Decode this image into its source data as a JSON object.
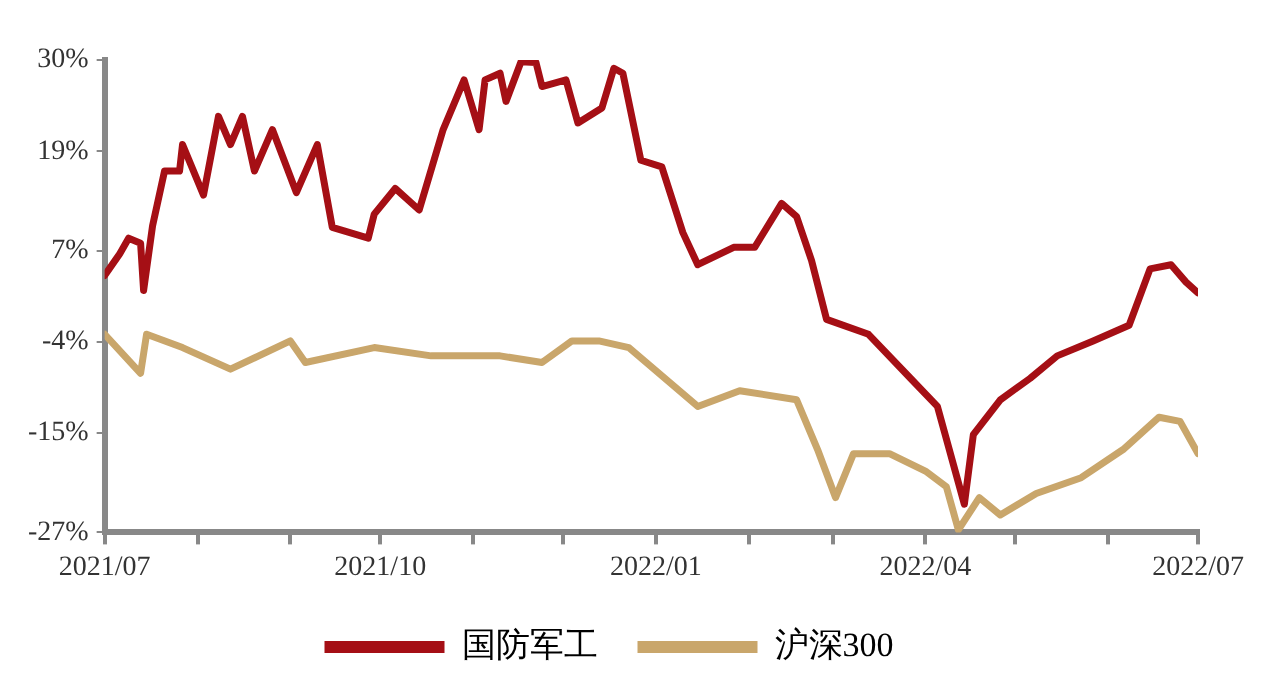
{
  "chart_data": {
    "type": "line",
    "legend": "bottom",
    "grid": false,
    "marker": "none",
    "line_style": "solid",
    "xlim": [
      "2021-07-01",
      "2022-07-01"
    ],
    "xticks": [
      {
        "value": "2021-07-01",
        "label": "2021/07"
      },
      {
        "value": "2021-08-01",
        "label": null
      },
      {
        "value": "2021-09-01",
        "label": null
      },
      {
        "value": "2021-10-01",
        "label": "2021/10"
      },
      {
        "value": "2021-11-01",
        "label": null
      },
      {
        "value": "2021-12-01",
        "label": null
      },
      {
        "value": "2022-01-01",
        "label": "2022/01"
      },
      {
        "value": "2022-02-01",
        "label": null
      },
      {
        "value": "2022-03-01",
        "label": null
      },
      {
        "value": "2022-04-01",
        "label": "2022/04"
      },
      {
        "value": "2022-05-01",
        "label": null
      },
      {
        "value": "2022-06-01",
        "label": null
      },
      {
        "value": "2022-07-01",
        "label": "2022/07"
      }
    ],
    "ylim": [
      -27,
      30
    ],
    "yticks": [
      {
        "value": 30,
        "label": "30%"
      },
      {
        "value": 19,
        "label": "19%"
      },
      {
        "value": 7,
        "label": "7%"
      },
      {
        "value": -4,
        "label": "-4%"
      },
      {
        "value": -15,
        "label": "-15%"
      },
      {
        "value": -27,
        "label": "-27%"
      }
    ],
    "series": [
      {
        "name": "国防军工",
        "color": "#a50f15",
        "x": [
          "2021-07-01",
          "2021-07-06",
          "2021-07-09",
          "2021-07-13",
          "2021-07-14",
          "2021-07-17",
          "2021-07-21",
          "2021-07-26",
          "2021-07-27",
          "2021-08-03",
          "2021-08-08",
          "2021-08-12",
          "2021-08-16",
          "2021-08-20",
          "2021-08-26",
          "2021-09-03",
          "2021-09-10",
          "2021-09-15",
          "2021-09-27",
          "2021-09-29",
          "2021-10-06",
          "2021-10-14",
          "2021-10-22",
          "2021-10-29",
          "2021-11-03",
          "2021-11-05",
          "2021-11-10",
          "2021-11-12",
          "2021-11-17",
          "2021-11-22",
          "2021-11-24",
          "2021-12-02",
          "2021-12-06",
          "2021-12-14",
          "2021-12-18",
          "2021-12-21",
          "2021-12-27",
          "2022-01-03",
          "2022-01-10",
          "2022-01-15",
          "2022-01-27",
          "2022-02-03",
          "2022-02-12",
          "2022-02-17",
          "2022-02-22",
          "2022-02-27",
          "2022-03-13",
          "2022-03-27",
          "2022-04-05",
          "2022-04-14",
          "2022-04-17",
          "2022-04-26",
          "2022-05-06",
          "2022-05-15",
          "2022-05-27",
          "2022-06-08",
          "2022-06-15",
          "2022-06-22",
          "2022-06-27",
          "2022-07-01"
        ],
        "values": [
          4.0,
          6.6,
          8.5,
          7.9,
          2.2,
          10.0,
          16.6,
          16.6,
          19.8,
          13.7,
          23.2,
          19.8,
          23.2,
          16.6,
          21.6,
          14.0,
          19.8,
          9.8,
          8.5,
          11.4,
          14.5,
          11.9,
          21.6,
          27.6,
          21.6,
          27.6,
          28.4,
          25.0,
          29.8,
          29.7,
          26.8,
          27.6,
          22.4,
          24.2,
          29.0,
          28.4,
          17.9,
          17.1,
          9.2,
          5.3,
          7.4,
          7.4,
          12.7,
          11.1,
          5.8,
          -1.3,
          -3.1,
          -8.4,
          -11.8,
          -23.6,
          -15.2,
          -11.0,
          -8.4,
          -5.7,
          -3.9,
          -2.0,
          4.8,
          5.3,
          3.2,
          1.9
        ]
      },
      {
        "name": "沪深300",
        "color": "#c9a66b",
        "x": [
          "2021-07-01",
          "2021-07-13",
          "2021-07-15",
          "2021-07-27",
          "2021-08-12",
          "2021-09-01",
          "2021-09-06",
          "2021-09-29",
          "2021-10-18",
          "2021-11-10",
          "2021-11-24",
          "2021-12-04",
          "2021-12-13",
          "2021-12-23",
          "2022-01-15",
          "2022-01-29",
          "2022-02-17",
          "2022-02-24",
          "2022-03-02",
          "2022-03-08",
          "2022-03-20",
          "2022-04-01",
          "2022-04-08",
          "2022-04-12",
          "2022-04-19",
          "2022-04-26",
          "2022-05-08",
          "2022-05-23",
          "2022-06-06",
          "2022-06-18",
          "2022-06-25",
          "2022-07-01"
        ],
        "values": [
          -3.1,
          -7.8,
          -3.1,
          -4.7,
          -7.3,
          -3.9,
          -6.5,
          -4.7,
          -5.7,
          -5.7,
          -6.5,
          -3.9,
          -3.9,
          -4.7,
          -11.8,
          -9.9,
          -11.0,
          -17.0,
          -22.8,
          -17.5,
          -17.5,
          -19.6,
          -21.5,
          -26.7,
          -22.8,
          -24.9,
          -22.3,
          -20.4,
          -17.0,
          -13.1,
          -13.6,
          -17.5
        ]
      }
    ]
  }
}
